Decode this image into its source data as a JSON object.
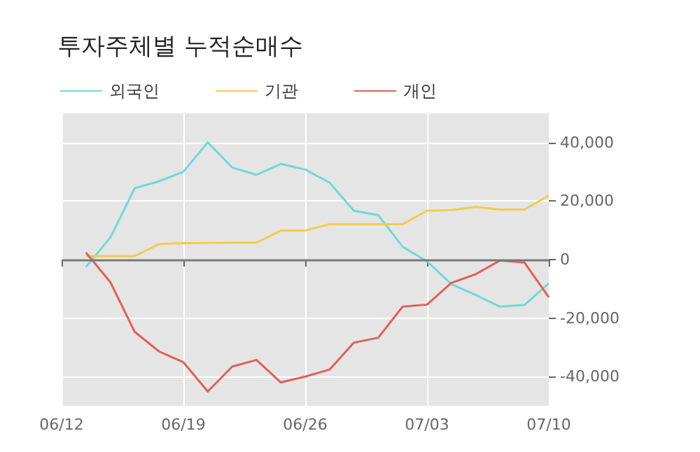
{
  "chart_data": {
    "type": "line",
    "title": "투자주체별 누적순매수",
    "categories": [
      "06/12",
      null,
      null,
      null,
      null,
      "06/19",
      null,
      null,
      null,
      null,
      "06/26",
      null,
      null,
      null,
      null,
      "07/03",
      null,
      null,
      null,
      null,
      "07/10"
    ],
    "series": [
      {
        "name": "외국인",
        "color": "#72d8d8",
        "values": [
          null,
          -2500,
          7500,
          24400,
          26800,
          30000,
          40100,
          31500,
          29000,
          32700,
          30800,
          26300,
          16700,
          15200,
          4400,
          -600,
          -8400,
          -12100,
          -16100,
          -15500,
          -8100
        ]
      },
      {
        "name": "기관",
        "color": "#f5cb4a",
        "values": [
          null,
          1200,
          1200,
          1200,
          5300,
          5600,
          5700,
          5800,
          5800,
          9900,
          9900,
          12100,
          12100,
          12100,
          12100,
          16700,
          16900,
          18000,
          17100,
          17100,
          21900
        ]
      },
      {
        "name": "개인",
        "color": "#e0605a",
        "values": [
          null,
          2400,
          -7700,
          -24700,
          -31400,
          -35100,
          -45100,
          -36600,
          -34300,
          -42000,
          -40000,
          -37600,
          -28400,
          -26700,
          -16100,
          -15400,
          -8000,
          -5000,
          -300,
          -1000,
          -12900
        ]
      }
    ],
    "ylim": [
      -50000,
      50000
    ],
    "yticks": [
      {
        "value": -40000,
        "label": "-40,000"
      },
      {
        "value": -20000,
        "label": "-20,000"
      },
      0,
      {
        "value": 20000,
        "label": "20,000"
      },
      {
        "value": 40000,
        "label": "40,000"
      }
    ],
    "ref_lines": [
      {
        "axis": "y",
        "value": 0,
        "color": "#777777"
      }
    ],
    "grid": true,
    "legend": "top left",
    "marker": "none",
    "line_style": "solid"
  }
}
